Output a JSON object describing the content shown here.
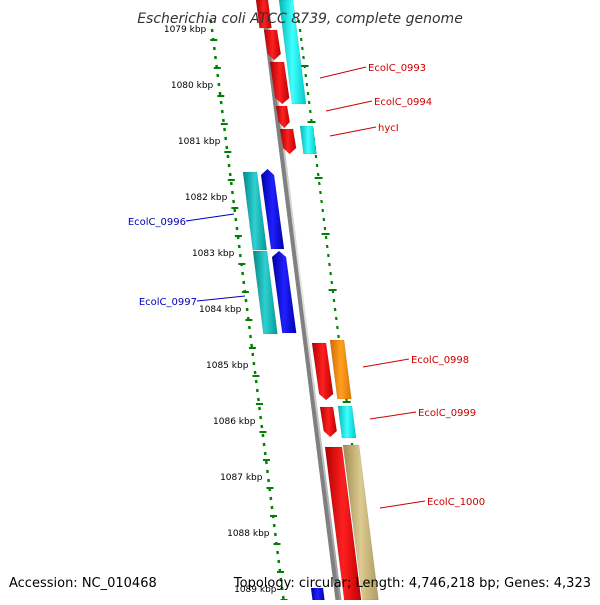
{
  "title": "Escherichia coli ATCC 8739, complete genome",
  "footer": {
    "accession": "Accession: NC_010468",
    "summary": "Topology: circular; Length: 4,746,218 bp; Genes: 4,323"
  },
  "axis": {
    "labels": [
      "1079 kbp",
      "1080 kbp",
      "1081 kbp",
      "1082 kbp",
      "1083 kbp",
      "1084 kbp",
      "1085 kbp",
      "1086 kbp",
      "1087 kbp",
      "1088 kbp",
      "1089 kbp"
    ]
  },
  "gene_labels": [
    {
      "text": "EcolC_0993",
      "strand": "reverse"
    },
    {
      "text": "EcolC_0994",
      "strand": "reverse"
    },
    {
      "text": "hycI",
      "strand": "reverse"
    },
    {
      "text": "EcolC_0996",
      "strand": "forward"
    },
    {
      "text": "EcolC_0997",
      "strand": "forward"
    },
    {
      "text": "EcolC_0998",
      "strand": "reverse"
    },
    {
      "text": "EcolC_0999",
      "strand": "reverse"
    },
    {
      "text": "EcolC_1000",
      "strand": "reverse"
    }
  ],
  "colors": {
    "reverse_cds": "#ff0000",
    "forward_cds": "#0000ff",
    "reverse_label": "#cc0000",
    "forward_label": "#0000bb",
    "cyan_feature": "#00e5e5",
    "teal_feature": "#00b3b3",
    "orange_feature": "#ff8c00",
    "khaki_feature": "#c8b46e",
    "backbone": "#808080",
    "ruler_ticks": "#008000"
  }
}
